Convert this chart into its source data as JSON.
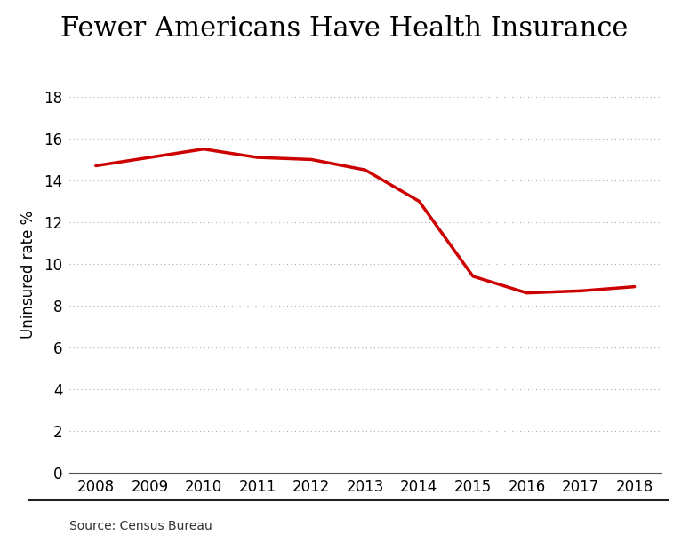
{
  "title": "Fewer Americans Have Health Insurance",
  "xlabel": "",
  "ylabel": "Uninsured rate %",
  "source": "Source: Census Bureau",
  "years": [
    2008,
    2009,
    2010,
    2011,
    2012,
    2013,
    2014,
    2015,
    2016,
    2017,
    2018
  ],
  "values": [
    14.7,
    15.1,
    15.5,
    15.1,
    15.0,
    14.5,
    13.0,
    9.4,
    8.6,
    8.7,
    8.9
  ],
  "line_color": "#cc0000",
  "line_width": 2.5,
  "ylim": [
    0,
    19
  ],
  "yticks": [
    0,
    2,
    4,
    6,
    8,
    10,
    12,
    14,
    16,
    18
  ],
  "background_color": "#ffffff",
  "title_fontsize": 22,
  "ylabel_fontsize": 12,
  "source_fontsize": 10,
  "tick_fontsize": 12,
  "grid_color": "#aaaaaa",
  "title_line_color": "#222222"
}
